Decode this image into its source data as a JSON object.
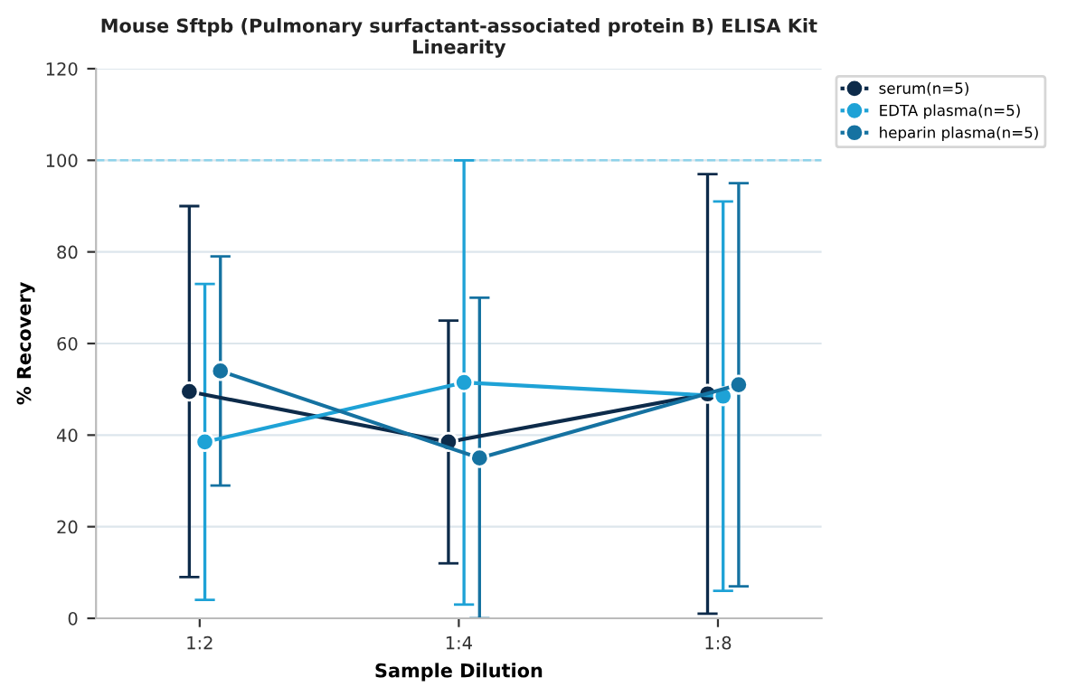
{
  "chart_data": {
    "type": "line",
    "title": "Mouse Sftpb (Pulmonary surfactant-associated protein B) ELISA Kit\nLinearity",
    "xlabel": "Sample Dilution",
    "ylabel": "% Recovery",
    "categories": [
      "1:2",
      "1:4",
      "1:8"
    ],
    "series": [
      {
        "name": "serum(n=5)",
        "color": "#0d2b4a",
        "values": [
          49.5,
          38.5,
          49
        ],
        "errors": [
          [
            9,
            90
          ],
          [
            12,
            65
          ],
          [
            1,
            97
          ]
        ]
      },
      {
        "name": "EDTA plasma(n=5)",
        "color": "#1ea2d6",
        "values": [
          38.5,
          51.5,
          48.5
        ],
        "errors": [
          [
            4,
            73
          ],
          [
            3,
            100
          ],
          [
            6,
            91
          ]
        ]
      },
      {
        "name": "heparin plasma(n=5)",
        "color": "#1572a1",
        "values": [
          54,
          35,
          51
        ],
        "errors": [
          [
            29,
            79
          ],
          [
            0,
            70
          ],
          [
            7,
            95
          ]
        ]
      }
    ],
    "ylim": [
      0,
      120
    ],
    "yticks": [
      0,
      20,
      40,
      60,
      80,
      100,
      120
    ],
    "ref_lines": [
      {
        "axis": "y",
        "value": 100,
        "color": "#8fd3ea",
        "line_style": "dashed"
      }
    ],
    "grid": "y",
    "legend": "top right",
    "marker": "circle",
    "line_style": "solid"
  }
}
